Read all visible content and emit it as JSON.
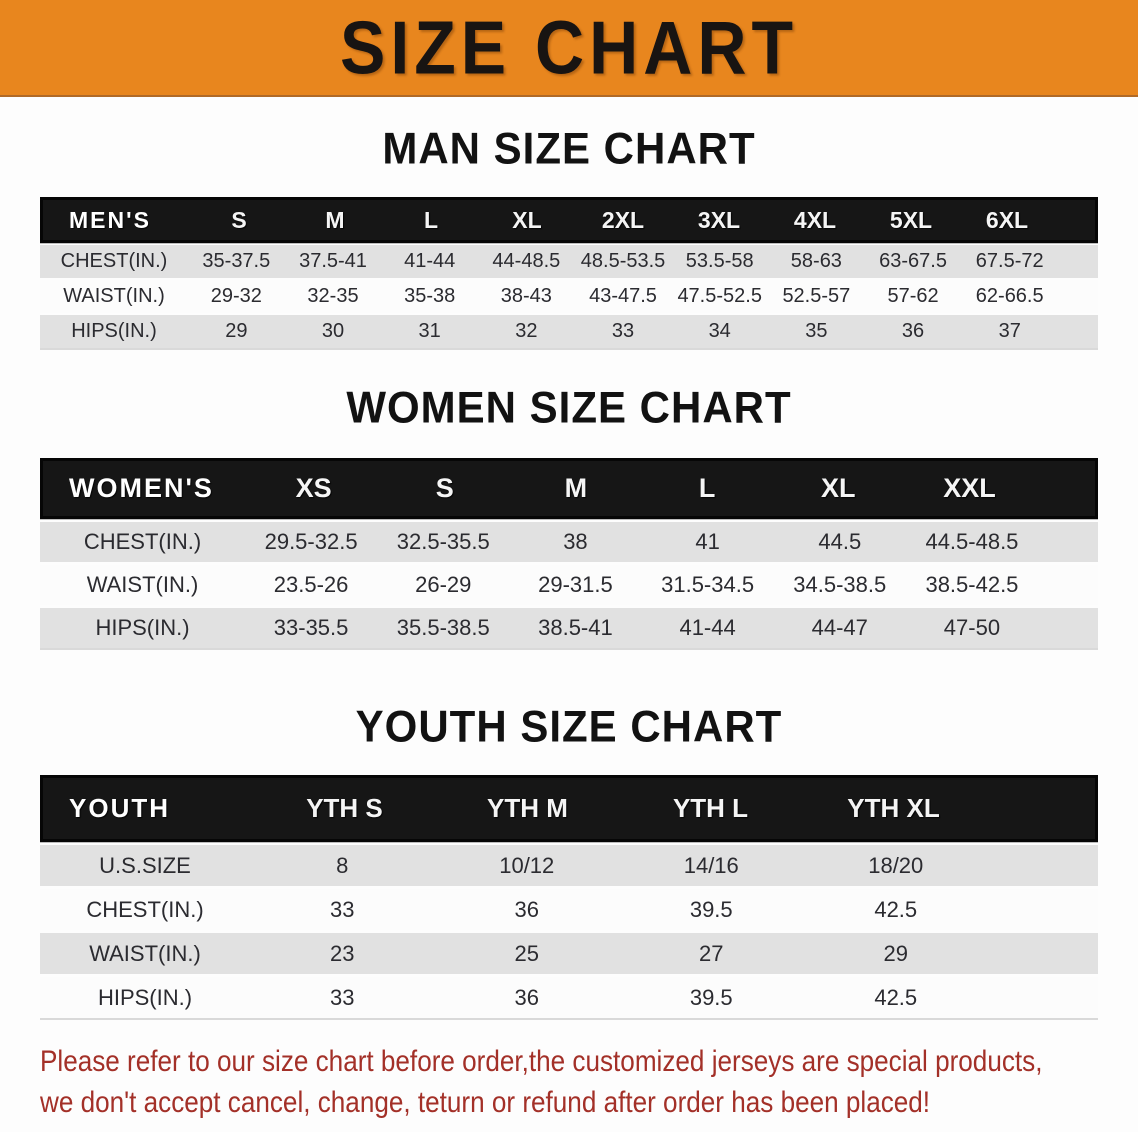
{
  "banner": {
    "title": "SIZE CHART"
  },
  "colors": {
    "banner_bg": "#E8861E",
    "table_header_bg": "#161616",
    "row_alt_bg": "#E1E1E1",
    "disclaimer_color": "#A33028"
  },
  "sections": [
    {
      "heading": "MAN SIZE CHART",
      "table": {
        "header_label": "MEN'S",
        "columns": [
          "S",
          "M",
          "L",
          "XL",
          "2XL",
          "3XL",
          "4XL",
          "5XL",
          "6XL"
        ],
        "rows": [
          {
            "label": "CHEST(IN.)",
            "values": [
              "35-37.5",
              "37.5-41",
              "41-44",
              "44-48.5",
              "48.5-53.5",
              "53.5-58",
              "58-63",
              "63-67.5",
              "67.5-72"
            ]
          },
          {
            "label": "WAIST(IN.)",
            "values": [
              "29-32",
              "32-35",
              "35-38",
              "38-43",
              "43-47.5",
              "47.5-52.5",
              "52.5-57",
              "57-62",
              "62-66.5"
            ]
          },
          {
            "label": "HIPS(IN.)",
            "values": [
              "29",
              "30",
              "31",
              "32",
              "33",
              "34",
              "35",
              "36",
              "37"
            ]
          }
        ]
      }
    },
    {
      "heading": "WOMEN SIZE CHART",
      "table": {
        "header_label": "WOMEN'S",
        "columns": [
          "XS",
          "S",
          "M",
          "L",
          "XL",
          "XXL"
        ],
        "rows": [
          {
            "label": "CHEST(IN.)",
            "values": [
              "29.5-32.5",
              "32.5-35.5",
              "38",
              "41",
              "44.5",
              "44.5-48.5"
            ]
          },
          {
            "label": "WAIST(IN.)",
            "values": [
              "23.5-26",
              "26-29",
              "29-31.5",
              "31.5-34.5",
              "34.5-38.5",
              "38.5-42.5"
            ]
          },
          {
            "label": "HIPS(IN.)",
            "values": [
              "33-35.5",
              "35.5-38.5",
              "38.5-41",
              "41-44",
              "44-47",
              "47-50"
            ]
          }
        ]
      }
    },
    {
      "heading": "YOUTH SIZE CHART",
      "table": {
        "header_label": "YOUTH",
        "columns": [
          "YTH S",
          "YTH M",
          "YTH L",
          "YTH XL"
        ],
        "rows": [
          {
            "label": "U.S.SIZE",
            "values": [
              "8",
              "10/12",
              "14/16",
              "18/20"
            ]
          },
          {
            "label": "CHEST(IN.)",
            "values": [
              "33",
              "36",
              "39.5",
              "42.5"
            ]
          },
          {
            "label": "WAIST(IN.)",
            "values": [
              "23",
              "25",
              "27",
              "29"
            ]
          },
          {
            "label": "HIPS(IN.)",
            "values": [
              "33",
              "36",
              "39.5",
              "42.5"
            ]
          }
        ]
      }
    }
  ],
  "disclaimer": {
    "line1": "Please refer to our size chart before order,the customized jerseys are special products,",
    "line2": "we don't accept cancel, change, teturn or refund after order has been placed!"
  }
}
